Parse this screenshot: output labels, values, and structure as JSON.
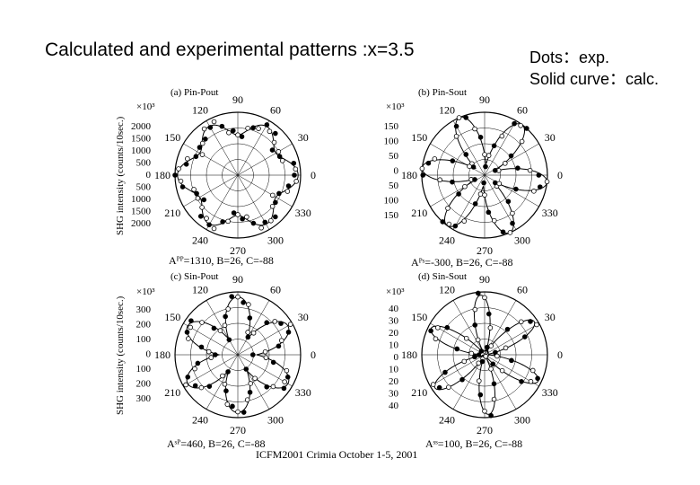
{
  "title": "Calculated and experimental patterns :x=3.5",
  "legend": {
    "line1": "Dots：exp.",
    "line2": "Solid curve：calc."
  },
  "ylabel_top": "SHG intensity (counts/10sec.)",
  "ylabel_bottom": "SHG intensity (counts/10sec.)",
  "footer": "ICFM2001 Crimia October 1-5, 2001",
  "colors": {
    "line": "#000000",
    "open_dot": "#ffffff",
    "filled_dot": "#000000"
  },
  "chart_data": [
    {
      "type": "polar",
      "panel_label": "(a) Pin-Pout",
      "multiplier": "×10³",
      "radial_ticks": [
        "2000",
        "1500",
        "1000",
        "500",
        "0",
        "500",
        "1000",
        "1500",
        "2000"
      ],
      "r_max": 2000,
      "angle_labels": [
        "90",
        "60",
        "30",
        "0",
        "330",
        "300",
        "270",
        "240",
        "210",
        "180",
        "150",
        "120"
      ],
      "params": "Aᴾᴾ=1310, B=26, C=-88",
      "A": 1310,
      "B": 26,
      "C": -88,
      "series": [
        {
          "name": "calc",
          "style": "line"
        },
        {
          "name": "exp",
          "style": "dots"
        }
      ]
    },
    {
      "type": "polar",
      "panel_label": "(b) Pin-Sout",
      "multiplier": "×10³",
      "radial_ticks": [
        "150",
        "100",
        "50",
        "0",
        "50",
        "100",
        "150"
      ],
      "r_max": 150,
      "angle_labels": [
        "90",
        "60",
        "30",
        "0",
        "330",
        "300",
        "270",
        "240",
        "210",
        "180",
        "150",
        "120"
      ],
      "params": "Aᴾˢ=-300, B=26, C=-88",
      "A": -300,
      "B": 26,
      "C": -88,
      "series": [
        {
          "name": "calc",
          "style": "line"
        },
        {
          "name": "exp",
          "style": "dots"
        }
      ]
    },
    {
      "type": "polar",
      "panel_label": "(c) Sin-Pout",
      "multiplier": "×10³",
      "radial_ticks": [
        "300",
        "200",
        "100",
        "0",
        "100",
        "200",
        "300"
      ],
      "r_max": 300,
      "angle_labels": [
        "90",
        "60",
        "30",
        "0",
        "330",
        "300",
        "270",
        "240",
        "210",
        "180",
        "150",
        "120"
      ],
      "params": "Aˢᴾ=460, B=26, C=-88",
      "A": 460,
      "B": 26,
      "C": -88,
      "series": [
        {
          "name": "calc",
          "style": "line"
        },
        {
          "name": "exp",
          "style": "dots"
        }
      ]
    },
    {
      "type": "polar",
      "panel_label": "(d) Sin-Sout",
      "multiplier": "×10³",
      "radial_ticks": [
        "40",
        "30",
        "20",
        "10",
        "0",
        "10",
        "20",
        "30",
        "40"
      ],
      "r_max": 40,
      "angle_labels": [
        "90",
        "60",
        "30",
        "0",
        "330",
        "300",
        "270",
        "240",
        "210",
        "180",
        "150",
        "120"
      ],
      "params": "Aˢˢ=100, B=26, C=-88",
      "A": 100,
      "B": 26,
      "C": -88,
      "series": [
        {
          "name": "calc",
          "style": "line"
        },
        {
          "name": "exp",
          "style": "dots"
        }
      ]
    }
  ]
}
